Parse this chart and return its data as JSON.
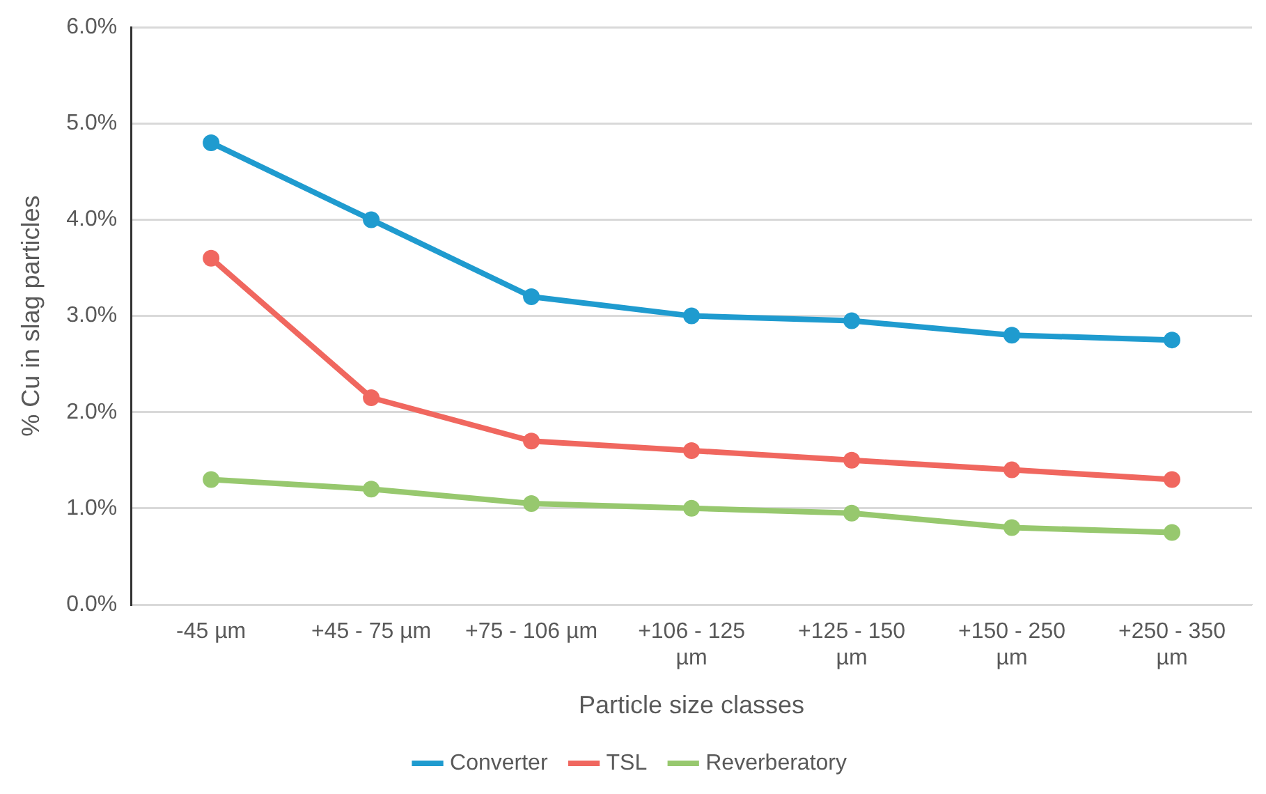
{
  "chart_data": {
    "type": "line",
    "xlabel": "Particle size classes",
    "ylabel": "% Cu in slag particles",
    "categories": [
      "-45 µm",
      "+45 - 75 µm",
      "+75 - 106 µm",
      "+106 - 125 µm",
      "+125 - 150 µm",
      "+150 - 250 µm",
      "+250 - 350 µm"
    ],
    "series": [
      {
        "name": "Converter",
        "color": "#1f9bcf",
        "values": [
          4.8,
          4.0,
          3.2,
          3.0,
          2.95,
          2.8,
          2.75
        ]
      },
      {
        "name": "TSL",
        "color": "#f0675f",
        "values": [
          3.6,
          2.15,
          1.7,
          1.6,
          1.5,
          1.4,
          1.3
        ]
      },
      {
        "name": "Reverberatory",
        "color": "#97c86e",
        "values": [
          1.3,
          1.2,
          1.05,
          1.0,
          0.95,
          0.8,
          0.75
        ]
      }
    ],
    "ylim": [
      0,
      6
    ],
    "yticks": [
      {
        "value": 0,
        "label": "0.0%"
      },
      {
        "value": 1,
        "label": "1.0%"
      },
      {
        "value": 2,
        "label": "2.0%"
      },
      {
        "value": 3,
        "label": "3.0%"
      },
      {
        "value": 4,
        "label": "4.0%"
      },
      {
        "value": 5,
        "label": "5.0%"
      },
      {
        "value": 6,
        "label": "6.0%"
      }
    ],
    "grid": "y",
    "legend": "bottom",
    "marker": "circle",
    "line_style": "solid"
  }
}
